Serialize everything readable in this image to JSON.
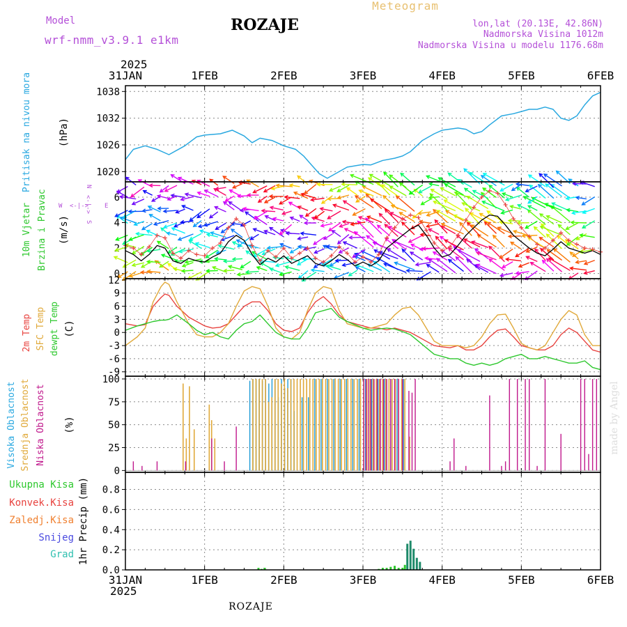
{
  "header": {
    "model_label": "Model",
    "model_name": "wrf-nmm_v3.9.1 e1km",
    "station": "ROZAJE",
    "product": "Meteogram",
    "coords": "lon,lat (20.13E, 42.86N)",
    "altitude": "Nadmorska Visina 1012m",
    "model_altitude": "Nadmorska Visina u modelu 1176.68m",
    "footer_station": "ROZAJE",
    "credit": "made by Angel"
  },
  "time_axis": {
    "year": "2025",
    "ticks": [
      "31JAN",
      "1FEB",
      "2FEB",
      "3FEB",
      "4FEB",
      "5FEB",
      "6FEB"
    ]
  },
  "colors": {
    "pressure": "#29a8e0",
    "temp2m": "#e8433f",
    "tempsfc": "#e0a93a",
    "dewpt": "#2ec82e",
    "cloud_high": "#1e9ad6",
    "cloud_mid": "#e0a93a",
    "cloud_low": "#c0188c",
    "precip_total": "#2ec82e",
    "precip_conv": "#e8433f",
    "precip_frz": "#f08030",
    "precip_snow": "#4a4ae0",
    "precip_grad": "#30c0b0",
    "wind_label": "#b450d8",
    "speed_line": "#000000",
    "gust_marks": "#e8433f"
  },
  "chart_data": [
    {
      "type": "line",
      "panel": "pressure",
      "ylabel_name": "Pritisak na nivou mora",
      "ylabel_unit": "(hPa)",
      "yticks": [
        1020,
        1026,
        1032,
        1038
      ],
      "ylim": [
        1017.7,
        1039.3
      ],
      "x": [
        0,
        0.1,
        0.25,
        0.4,
        0.55,
        0.75,
        0.9,
        1.0,
        1.2,
        1.35,
        1.5,
        1.6,
        1.7,
        1.85,
        2.0,
        2.15,
        2.25,
        2.35,
        2.45,
        2.55,
        2.65,
        2.8,
        3.0,
        3.1,
        3.25,
        3.4,
        3.5,
        3.6,
        3.75,
        3.9,
        4.0,
        4.2,
        4.3,
        4.4,
        4.5,
        4.6,
        4.75,
        4.9,
        5.0,
        5.1,
        5.2,
        5.3,
        5.4,
        5.5,
        5.6,
        5.7,
        5.8,
        5.9,
        6.0
      ],
      "series": [
        {
          "values": [
            1022.7,
            1025.0,
            1025.8,
            1025.0,
            1023.8,
            1025.8,
            1027.8,
            1028.2,
            1028.5,
            1029.3,
            1028.0,
            1026.5,
            1027.5,
            1027.0,
            1025.8,
            1025.0,
            1023.5,
            1021.5,
            1019.5,
            1018.5,
            1019.5,
            1021.0,
            1021.6,
            1021.5,
            1022.5,
            1023.0,
            1023.5,
            1024.5,
            1027.0,
            1028.5,
            1029.3,
            1029.8,
            1029.5,
            1028.5,
            1029.0,
            1030.5,
            1032.5,
            1033.0,
            1033.5,
            1034.0,
            1034.0,
            1034.5,
            1034.0,
            1032.0,
            1031.5,
            1032.5,
            1035.0,
            1037.0,
            1037.8
          ]
        }
      ]
    },
    {
      "type": "line",
      "panel": "wind",
      "ylabel_name": "10m Vjetar Brzina i Pravac",
      "ylabel_unit": "(m/s)",
      "compass": {
        "n": "N",
        "s": "S",
        "e": "E",
        "w": "W"
      },
      "yticks": [
        0,
        2,
        4,
        6
      ],
      "ylim": [
        -0.4,
        7.2
      ],
      "x": [
        0,
        0.1,
        0.2,
        0.3,
        0.4,
        0.5,
        0.6,
        0.7,
        0.8,
        0.9,
        1.0,
        1.1,
        1.2,
        1.3,
        1.4,
        1.5,
        1.6,
        1.7,
        1.8,
        1.9,
        2.0,
        2.1,
        2.2,
        2.3,
        2.4,
        2.5,
        2.6,
        2.7,
        2.8,
        2.9,
        3.0,
        3.1,
        3.2,
        3.3,
        3.4,
        3.5,
        3.6,
        3.7,
        3.8,
        3.9,
        4.0,
        4.1,
        4.2,
        4.3,
        4.4,
        4.5,
        4.6,
        4.7,
        4.8,
        4.9,
        5.0,
        5.1,
        5.2,
        5.3,
        5.4,
        5.5,
        5.6,
        5.7,
        5.8,
        5.9,
        6.0
      ],
      "series": [
        {
          "name": "speed",
          "values": [
            1.8,
            1.5,
            1.0,
            1.5,
            2.2,
            2.0,
            1.0,
            0.8,
            1.2,
            1.0,
            0.9,
            1.3,
            1.6,
            2.5,
            3.0,
            2.6,
            1.5,
            0.7,
            1.2,
            0.9,
            1.4,
            0.8,
            1.1,
            1.4,
            0.8,
            0.6,
            1.0,
            1.5,
            1.1,
            0.6,
            0.9,
            0.6,
            1.0,
            2.0,
            2.5,
            3.0,
            3.5,
            3.8,
            3.0,
            2.0,
            1.3,
            1.5,
            2.2,
            3.0,
            3.6,
            4.2,
            4.6,
            4.5,
            3.8,
            3.0,
            2.5,
            2.0,
            1.6,
            1.4,
            1.9,
            2.5,
            2.0,
            1.8,
            1.6,
            1.8,
            1.5
          ]
        },
        {
          "name": "gust",
          "values": [
            2.2,
            2.0,
            1.5,
            2.1,
            3.0,
            2.8,
            1.6,
            1.2,
            1.8,
            1.5,
            1.4,
            2.0,
            2.4,
            3.6,
            4.3,
            3.8,
            2.2,
            1.0,
            1.8,
            1.3,
            2.0,
            1.2,
            1.6,
            2.0,
            1.2,
            0.9,
            1.4,
            2.1,
            1.6,
            0.9,
            1.3,
            0.9,
            1.5,
            2.8,
            3.6,
            4.3,
            4.6,
            4.4,
            3.4,
            2.4,
            1.8,
            2.1,
            3.0,
            4.2,
            5.2,
            6.0,
            6.5,
            6.3,
            5.4,
            4.3,
            3.6,
            2.9,
            2.3,
            2.0,
            2.6,
            3.2,
            2.6,
            2.3,
            2.0,
            1.9,
            1.7
          ]
        }
      ]
    },
    {
      "type": "line",
      "panel": "temperature",
      "ylabel_names": [
        "2m Temp",
        "SFC Temp",
        "dewpt Temp"
      ],
      "ylabel_unit": "(C)",
      "yticks": [
        -9,
        -6,
        -3,
        0,
        3,
        6,
        9,
        12
      ],
      "ylim": [
        -10,
        12.3
      ],
      "x": [
        0,
        0.15,
        0.25,
        0.35,
        0.45,
        0.5,
        0.55,
        0.65,
        0.8,
        0.9,
        1.0,
        1.1,
        1.2,
        1.3,
        1.4,
        1.5,
        1.6,
        1.7,
        1.8,
        1.9,
        2.0,
        2.1,
        2.2,
        2.3,
        2.4,
        2.5,
        2.6,
        2.7,
        2.8,
        3.0,
        3.1,
        3.2,
        3.3,
        3.4,
        3.5,
        3.6,
        3.7,
        3.8,
        3.9,
        4.0,
        4.1,
        4.2,
        4.3,
        4.4,
        4.5,
        4.6,
        4.7,
        4.8,
        4.9,
        5.0,
        5.1,
        5.2,
        5.3,
        5.4,
        5.5,
        5.6,
        5.7,
        5.8,
        5.9,
        6.0
      ],
      "series": [
        {
          "name": "2m Temp",
          "values": [
            2.0,
            1.5,
            1.8,
            6.0,
            8.0,
            8.8,
            8.5,
            6.0,
            3.5,
            2.5,
            1.5,
            1.0,
            1.2,
            2.0,
            4.0,
            6.0,
            7.0,
            7.0,
            5.0,
            2.0,
            0.5,
            0.2,
            1.0,
            4.5,
            7.0,
            8.2,
            6.5,
            4.0,
            2.5,
            1.5,
            1.0,
            1.0,
            0.6,
            1.0,
            0.5,
            0.0,
            -1.0,
            -2.0,
            -3.0,
            -3.3,
            -3.5,
            -3.0,
            -4.0,
            -4.0,
            -3.0,
            -1.0,
            0.5,
            0.8,
            -1.0,
            -3.0,
            -3.5,
            -4.0,
            -4.0,
            -3.0,
            -0.5,
            1.0,
            0.0,
            -2.0,
            -4.0,
            -4.5
          ]
        },
        {
          "name": "SFC Temp",
          "values": [
            -3.0,
            -1.0,
            1.0,
            7.0,
            10.5,
            11.5,
            11.0,
            7.0,
            2.0,
            -0.5,
            -1.0,
            -1.0,
            0.0,
            2.0,
            6.0,
            9.5,
            10.5,
            10.0,
            6.0,
            1.0,
            -1.0,
            -1.5,
            0.0,
            5.0,
            9.0,
            10.5,
            10.0,
            5.0,
            2.0,
            1.0,
            1.0,
            1.5,
            2.0,
            4.0,
            5.5,
            5.8,
            4.0,
            1.0,
            -2.0,
            -3.0,
            -3.0,
            -3.0,
            -3.5,
            -3.0,
            -1.0,
            2.0,
            4.0,
            4.2,
            1.0,
            -2.5,
            -3.5,
            -4.0,
            -3.0,
            0.0,
            3.0,
            5.0,
            4.0,
            -0.5,
            -3.0,
            -3.0
          ]
        },
        {
          "name": "dewpt Temp",
          "values": [
            0.5,
            1.5,
            2.0,
            2.5,
            2.8,
            2.8,
            3.0,
            4.0,
            2.0,
            0.5,
            -0.5,
            0.0,
            -1.0,
            -1.5,
            0.5,
            2.0,
            2.5,
            4.0,
            2.0,
            0.0,
            -1.0,
            -1.5,
            -1.5,
            1.0,
            4.5,
            5.0,
            5.5,
            3.5,
            2.5,
            1.0,
            0.5,
            0.8,
            1.0,
            0.8,
            0.2,
            -0.5,
            -2.0,
            -3.5,
            -5.0,
            -5.5,
            -6.0,
            -6.0,
            -7.0,
            -7.5,
            -7.0,
            -7.5,
            -7.0,
            -6.0,
            -5.5,
            -5.0,
            -6.0,
            -6.0,
            -5.5,
            -6.0,
            -6.5,
            -7.0,
            -7.0,
            -6.5,
            -8.0,
            -8.5
          ]
        }
      ]
    },
    {
      "type": "bar",
      "panel": "cloud",
      "ylabel_names": [
        "Visoka Oblacnost",
        "Srednja Oblacnost",
        "Niska Oblacnost"
      ],
      "ylabel_unit": "(%)",
      "yticks": [
        0,
        25,
        50,
        75,
        100
      ],
      "ylim": [
        -2,
        103
      ],
      "series": [
        {
          "name": "Visoka Oblacnost",
          "x": [
            1.58,
            1.62,
            1.66,
            1.7,
            1.74,
            1.78,
            1.82,
            1.86,
            1.9,
            1.94,
            1.98,
            2.02,
            2.06,
            2.1,
            2.14,
            2.24,
            2.32,
            2.4,
            2.48,
            2.56,
            2.64,
            2.72,
            2.8,
            2.88,
            2.96,
            3.04,
            3.12,
            3.2,
            3.28,
            3.36,
            3.44,
            3.52
          ],
          "values": [
            98,
            100,
            100,
            100,
            98,
            100,
            95,
            100,
            100,
            80,
            100,
            90,
            100,
            100,
            65,
            80,
            80,
            100,
            100,
            100,
            100,
            100,
            100,
            100,
            100,
            100,
            100,
            100,
            100,
            100,
            100,
            100
          ]
        },
        {
          "name": "Srednja Oblacnost",
          "x": [
            0.72,
            0.76,
            0.8,
            0.86,
            1.05,
            1.08,
            1.12,
            1.6,
            1.64,
            1.68,
            1.72,
            1.76,
            1.8,
            1.84,
            1.88,
            1.92,
            1.96,
            2.0,
            2.04,
            2.08,
            2.12,
            2.16,
            2.2,
            2.24,
            2.28,
            2.32,
            2.36,
            2.4,
            2.44,
            2.48,
            2.52,
            2.56,
            2.6,
            2.64,
            2.68,
            2.72,
            2.76,
            2.8,
            2.84,
            2.88,
            2.92,
            2.96,
            3.0,
            3.04,
            3.08,
            3.12,
            3.16,
            3.2,
            3.24,
            3.28,
            3.32,
            3.36,
            3.4,
            3.44,
            3.48,
            3.52,
            3.58
          ],
          "values": [
            95,
            35,
            92,
            45,
            72,
            55,
            35,
            100,
            100,
            100,
            100,
            100,
            75,
            80,
            100,
            100,
            95,
            100,
            90,
            100,
            100,
            100,
            100,
            100,
            100,
            100,
            100,
            100,
            100,
            100,
            100,
            100,
            100,
            100,
            100,
            100,
            100,
            100,
            100,
            100,
            100,
            100,
            100,
            100,
            100,
            100,
            100,
            100,
            100,
            100,
            100,
            100,
            100,
            100,
            100,
            100,
            37
          ]
        },
        {
          "name": "Niska Oblacnost",
          "x": [
            0.1,
            0.21,
            0.4,
            0.76,
            1.09,
            1.25,
            1.4,
            3.01,
            3.04,
            3.07,
            3.1,
            3.14,
            3.18,
            3.22,
            3.26,
            3.3,
            3.35,
            3.4,
            3.45,
            3.5,
            3.58,
            3.62,
            3.66,
            4.1,
            4.15,
            4.3,
            4.6,
            4.75,
            4.8,
            4.85,
            4.95,
            5.05,
            5.1,
            5.2,
            5.3,
            5.5,
            5.75,
            5.8,
            5.85,
            5.9,
            5.95
          ],
          "values": [
            10,
            5,
            10,
            10,
            35,
            10,
            48,
            100,
            100,
            100,
            100,
            100,
            100,
            100,
            100,
            100,
            100,
            100,
            100,
            100,
            87,
            85,
            100,
            10,
            35,
            5,
            82,
            5,
            10,
            100,
            100,
            100,
            100,
            5,
            100,
            40,
            100,
            100,
            18,
            100,
            100
          ]
        }
      ]
    },
    {
      "type": "bar",
      "panel": "precip",
      "ylabel_unit": "1hr Precip (mm)",
      "legend": [
        "Ukupna Kisa",
        "Konvek.Kisa",
        "Zaledj.Kisa",
        "Snijeg",
        "Grad"
      ],
      "yticks": [
        0.0,
        0.2,
        0.4,
        0.6,
        0.8
      ],
      "ylim": [
        0,
        0.97
      ],
      "xlabel": "ROZAJE",
      "series": [
        {
          "name": "Ukupna Kisa",
          "x": [
            1.68,
            1.72,
            1.76,
            3.2,
            3.25,
            3.3,
            3.35,
            3.4,
            3.45,
            3.5,
            3.53,
            3.56,
            3.6,
            3.64,
            3.68,
            3.72
          ],
          "values": [
            0.02,
            0.01,
            0.02,
            0.01,
            0.02,
            0.02,
            0.03,
            0.04,
            0.02,
            0.02,
            0.05,
            0.26,
            0.29,
            0.21,
            0.12,
            0.08
          ]
        }
      ]
    }
  ]
}
